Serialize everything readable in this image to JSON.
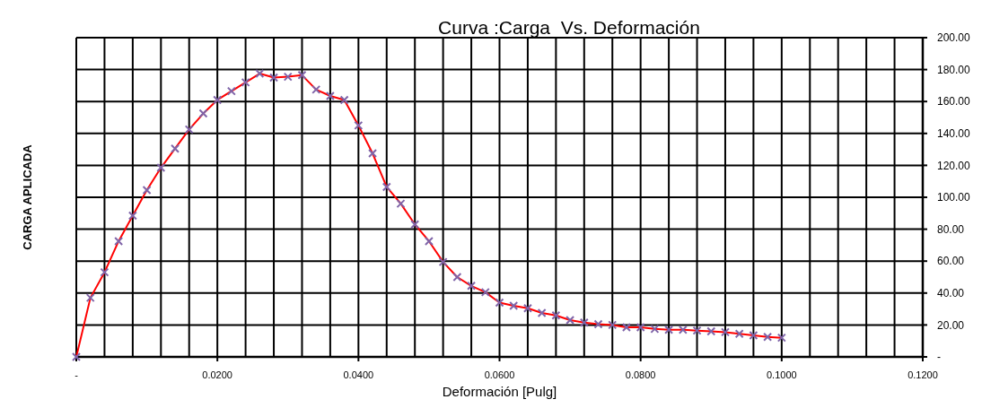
{
  "chart_data": {
    "type": "line",
    "title": "Curva :Carga  Vs. Deformación",
    "xlabel": "Deformación [Pulg]",
    "ylabel": "CARGA APLICADA",
    "x": [
      0,
      0.002,
      0.004,
      0.006,
      0.008,
      0.01,
      0.012,
      0.014,
      0.016,
      0.018,
      0.02,
      0.022,
      0.024,
      0.026,
      0.028,
      0.03,
      0.032,
      0.034,
      0.036,
      0.038,
      0.04,
      0.042,
      0.044,
      0.046,
      0.048,
      0.05,
      0.052,
      0.054,
      0.056,
      0.058,
      0.06,
      0.062,
      0.064,
      0.066,
      0.068,
      0.07,
      0.072,
      0.074,
      0.076,
      0.078,
      0.08,
      0.082,
      0.084,
      0.086,
      0.088,
      0.09,
      0.092,
      0.094,
      0.096,
      0.098,
      0.1
    ],
    "series": [
      {
        "color": "#ff0000",
        "colors": [
          "#7f64a8",
          "#7f64a8",
          "#7f64a8",
          "#7f64a8",
          "#7f64a8",
          "#7f64a8",
          "#7f64a8",
          "#7f64a8",
          "#7f64a8",
          "#7f64a8",
          "#7f64a8",
          "#7f64a8",
          "#7f64a8",
          "#7f64a8",
          "#7f64a8",
          "#7f64a8",
          "#7f64a8",
          "#7f64a8",
          "#7f64a8",
          "#7f64a8",
          "#7f64a8",
          "#7f64a8",
          "#7f64a8",
          "#7f64a8",
          "#7f64a8",
          "#7f64a8",
          "#7f64a8",
          "#7f64a8",
          "#7f64a8",
          "#7f64a8",
          "#7f64a8",
          "#7f64a8",
          "#7f64a8",
          "#7f64a8",
          "#7f64a8",
          "#7f64a8",
          "#7f64a8",
          "#7f64a8",
          "#7f64a8",
          "#7f64a8",
          "#7f64a8",
          "#7f64a8",
          "#7f64a8",
          "#7f64a8",
          "#7f64a8",
          "#7f64a8",
          "#7f64a8",
          "#7f64a8",
          "#7f64a8",
          "#7f64a8",
          "#7f64a8"
        ],
        "values": [
          0,
          37,
          53,
          72.5,
          88.5,
          104.5,
          118.5,
          130.5,
          142.5,
          152.5,
          161,
          166.5,
          172,
          177.5,
          175,
          175.5,
          176.5,
          167.5,
          163.5,
          161,
          145,
          127.5,
          106.5,
          96,
          83,
          72.5,
          59.5,
          50,
          44.5,
          40.5,
          34,
          32,
          30.5,
          27.5,
          26,
          23,
          21.5,
          20.5,
          20,
          18.5,
          18.5,
          17.5,
          17,
          17,
          16.5,
          16,
          15.5,
          14.5,
          13.5,
          12.5,
          12
        ]
      }
    ],
    "xlim": [
      0,
      0.12
    ],
    "xticks": [
      {
        "value": 0,
        "label": "-"
      },
      {
        "value": 0.004,
        "label": null
      },
      {
        "value": 0.008,
        "label": null
      },
      {
        "value": 0.012,
        "label": null
      },
      {
        "value": 0.016,
        "label": null
      },
      {
        "value": 0.02,
        "label": "0.0200"
      },
      {
        "value": 0.024,
        "label": null
      },
      {
        "value": 0.028,
        "label": null
      },
      {
        "value": 0.032,
        "label": null
      },
      {
        "value": 0.036,
        "label": null
      },
      {
        "value": 0.04,
        "label": "0.0400"
      },
      {
        "value": 0.044,
        "label": null
      },
      {
        "value": 0.048,
        "label": null
      },
      {
        "value": 0.052,
        "label": null
      },
      {
        "value": 0.056,
        "label": null
      },
      {
        "value": 0.06,
        "label": "0.0600"
      },
      {
        "value": 0.064,
        "label": null
      },
      {
        "value": 0.068,
        "label": null
      },
      {
        "value": 0.072,
        "label": null
      },
      {
        "value": 0.076,
        "label": null
      },
      {
        "value": 0.08,
        "label": "0.0800"
      },
      {
        "value": 0.084,
        "label": null
      },
      {
        "value": 0.088,
        "label": null
      },
      {
        "value": 0.092,
        "label": null
      },
      {
        "value": 0.096,
        "label": null
      },
      {
        "value": 0.1,
        "label": "0.1000"
      },
      {
        "value": 0.104,
        "label": null
      },
      {
        "value": 0.108,
        "label": null
      },
      {
        "value": 0.112,
        "label": null
      },
      {
        "value": 0.116,
        "label": null
      },
      {
        "value": 0.12,
        "label": "0.1200"
      }
    ],
    "ylim": [
      0,
      200
    ],
    "yticks": [
      {
        "value": 0,
        "label": "-"
      },
      {
        "value": 20,
        "label": "20.00"
      },
      {
        "value": 40,
        "label": "40.00"
      },
      {
        "value": 60,
        "label": "60.00"
      },
      {
        "value": 80,
        "label": "80.00"
      },
      {
        "value": 100,
        "label": "100.00"
      },
      {
        "value": 120,
        "label": "120.00"
      },
      {
        "value": 140,
        "label": "140.00"
      },
      {
        "value": 160,
        "label": "160.00"
      },
      {
        "value": 180,
        "label": "180.00"
      },
      {
        "value": 200,
        "label": "200.00"
      }
    ],
    "grid": true,
    "marker": "cross",
    "line_style": "solid"
  }
}
